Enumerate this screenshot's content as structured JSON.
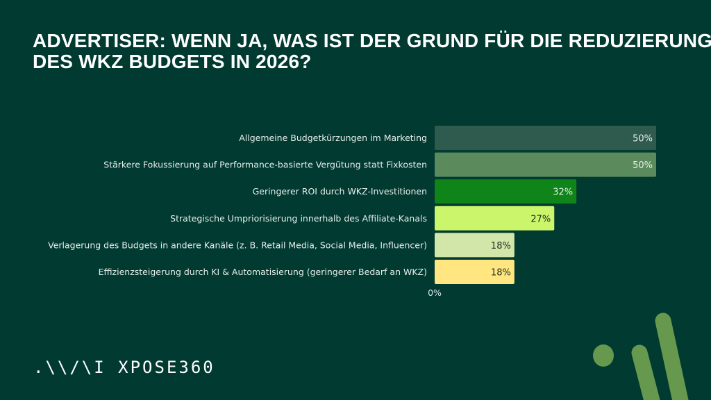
{
  "title": {
    "line1": "ADVERTISER: WENN JA, WAS IST DER GRUND FÜR DIE REDUZIERUNG",
    "line2": "DES WKZ BUDGETS IN 2026?"
  },
  "chart_data": {
    "type": "bar",
    "orientation": "horizontal",
    "title": "ADVERTISER: WENN JA, WAS IST DER GRUND FÜR DIE REDUZIERUNG DES WKZ BUDGETS IN 2026?",
    "categories": [
      "Allgemeine Budgetkürzungen im Marketing",
      "Stärkere Fokussierung auf Performance-basierte Vergütung statt Fixkosten",
      "Geringerer ROI durch WKZ-Investitionen",
      "Strategische Umpriorisierung innerhalb des Affiliate-Kanals",
      "Verlagerung des Budgets in andere Kanäle (z. B. Retail Media, Social Media, Influencer)",
      "Effizienzsteigerung durch KI & Automatisierung (geringerer Bedarf an WKZ)"
    ],
    "values": [
      50,
      50,
      32,
      27,
      18,
      18
    ],
    "data_labels": [
      "50%",
      "50%",
      "32%",
      "27%",
      "18%",
      "18%"
    ],
    "colors": [
      "#2f5a4e",
      "#5b8b5c",
      "#0e8419",
      "#cbf56a",
      "#d3e6a9",
      "#ffe681"
    ],
    "label_colors": [
      "#e6ece9",
      "#e6ece9",
      "#e6ece9",
      "#1d2b1f",
      "#1d2b1f",
      "#1d2b1f"
    ],
    "x_tick_labels": [
      "0%"
    ],
    "xlim": [
      0,
      50
    ],
    "xlabel": "",
    "ylabel": "",
    "grid": false
  },
  "logo": {
    "text": ".\\\\/\\I XPOSE360"
  },
  "colors": {
    "background": "#003a31",
    "accent": "#66994d"
  }
}
